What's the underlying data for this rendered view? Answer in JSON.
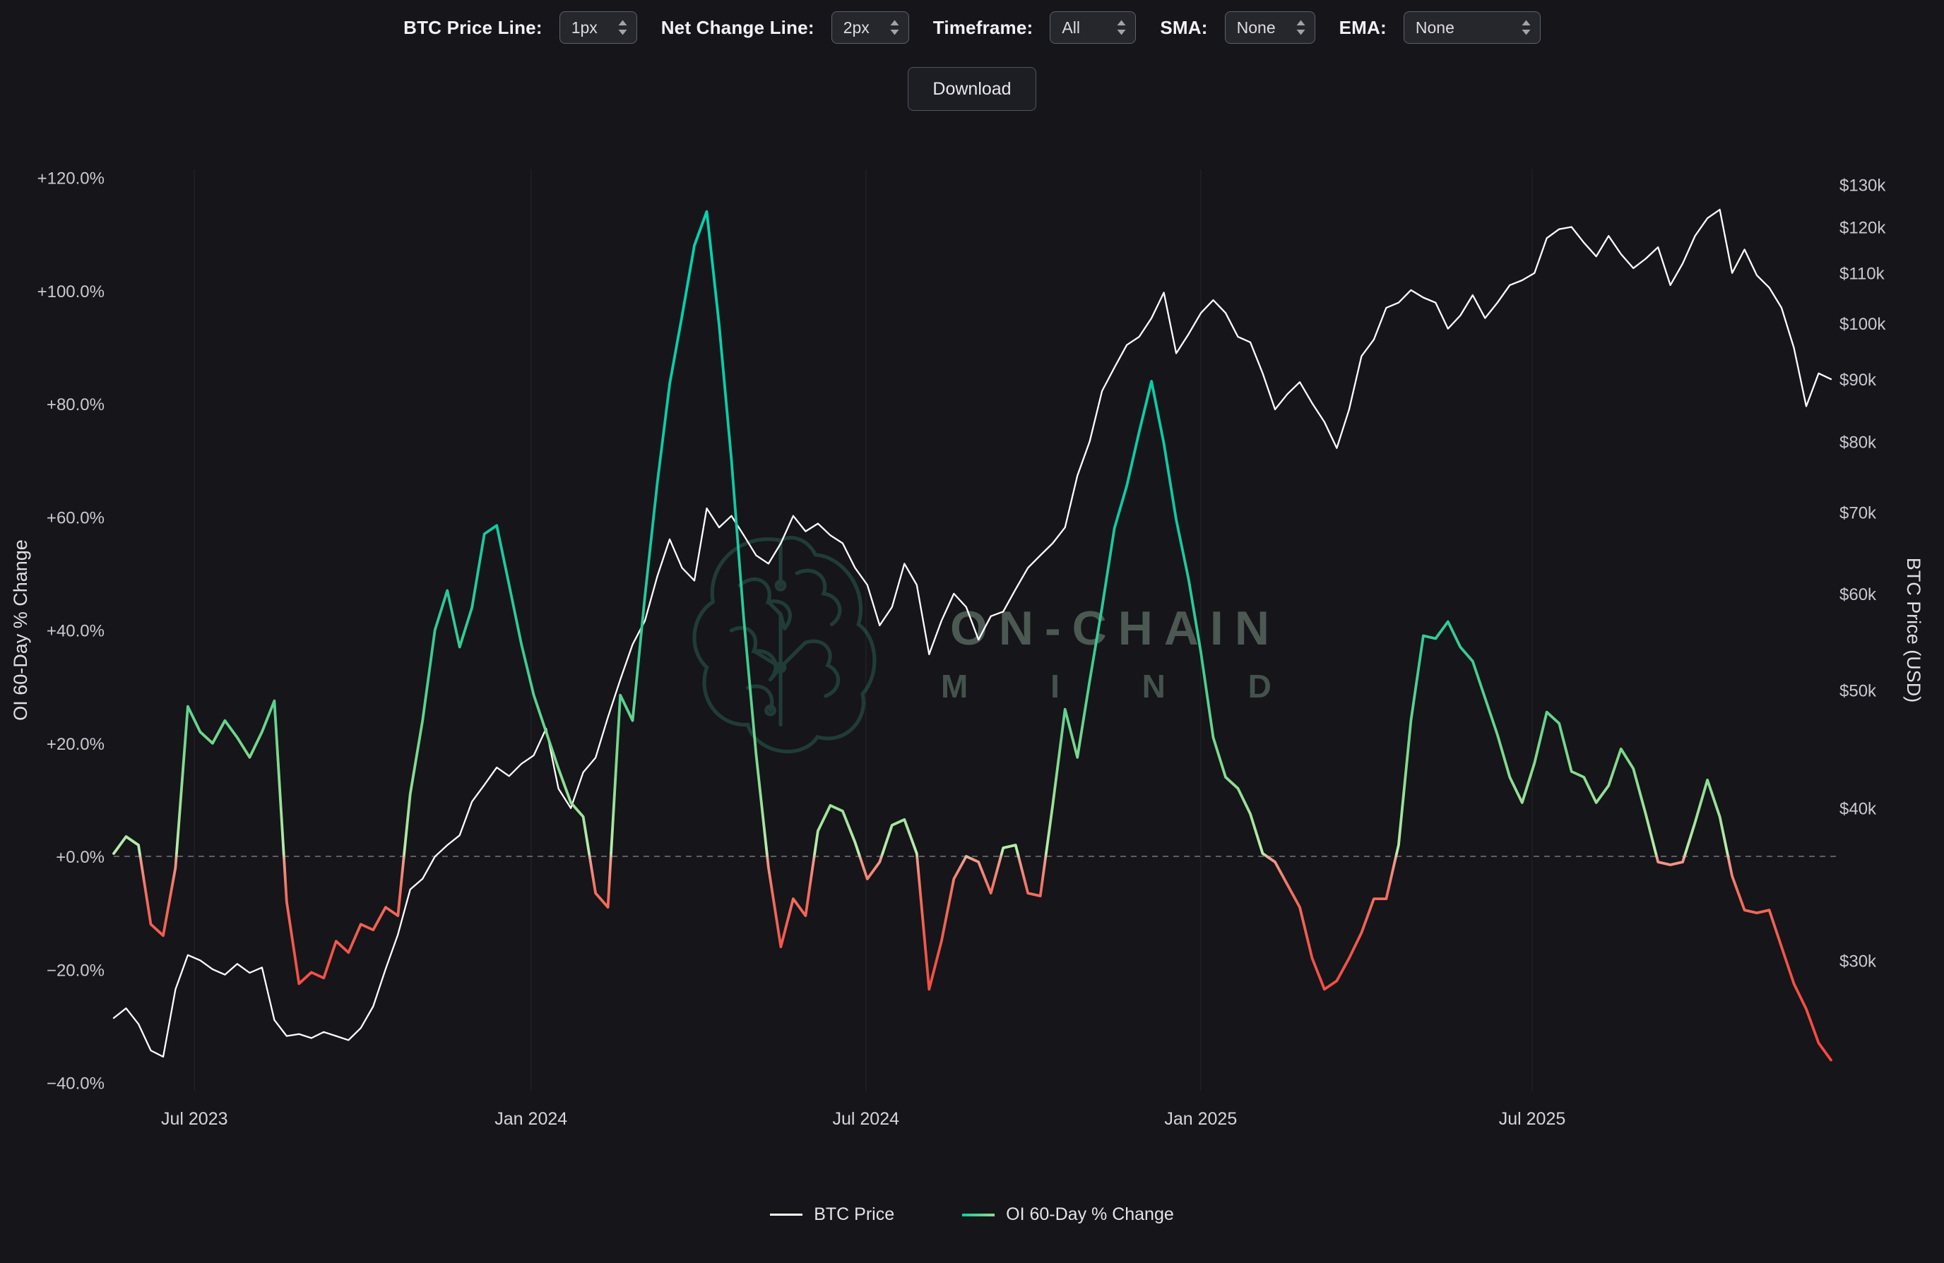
{
  "toolbar": {
    "controls": [
      {
        "label": "BTC Price Line:",
        "value": "1px"
      },
      {
        "label": "Net Change Line:",
        "value": "2px"
      },
      {
        "label": "Timeframe:",
        "value": "All"
      },
      {
        "label": "SMA:",
        "value": "None"
      },
      {
        "label": "EMA:",
        "value": "None"
      }
    ],
    "download_label": "Download"
  },
  "watermark": {
    "line1": "ON-CHAIN",
    "line2": "M I N D"
  },
  "legend": {
    "items": [
      {
        "label": "BTC Price"
      },
      {
        "label": "OI 60-Day % Change"
      }
    ]
  },
  "colors": {
    "background": "#15151a",
    "btc_line": "#ffffff",
    "positive": "#13c9a0",
    "negative": "#f4483a",
    "zero_line": "rgba(235,235,242,0.45)",
    "tick_text": "#c9c9cf",
    "axis_title": "#e0e0e4"
  },
  "chart_data": {
    "type": "line",
    "title": "",
    "grid": "minimal",
    "legend_position": "bottom",
    "zero_line": true,
    "x_axis": {
      "ticks": [
        {
          "pos": 0.047,
          "label": "Jul 2023"
        },
        {
          "pos": 0.243,
          "label": "Jan 2024"
        },
        {
          "pos": 0.438,
          "label": "Jul 2024"
        },
        {
          "pos": 0.633,
          "label": "Jan 2025"
        },
        {
          "pos": 0.826,
          "label": "Jul 2025"
        }
      ]
    },
    "left_axis": {
      "label": "OI 60-Day % Change",
      "min": -40,
      "max": 120,
      "ticks": [
        {
          "v": 120,
          "label": "+120.0%"
        },
        {
          "v": 100,
          "label": "+100.0%"
        },
        {
          "v": 80,
          "label": "+80.0%"
        },
        {
          "v": 60,
          "label": "+60.0%"
        },
        {
          "v": 40,
          "label": "+40.0%"
        },
        {
          "v": 20,
          "label": "+20.0%"
        },
        {
          "v": 0,
          "label": "+0.0%"
        },
        {
          "v": -20,
          "label": "−20.0%"
        },
        {
          "v": -40,
          "label": "−40.0%"
        }
      ]
    },
    "right_axis": {
      "label": "BTC Price (USD)",
      "scale": "log",
      "min_k": 30,
      "max_k": 130,
      "ticks": [
        {
          "v": 130,
          "label": "$130k"
        },
        {
          "v": 120,
          "label": "$120k"
        },
        {
          "v": 110,
          "label": "$110k"
        },
        {
          "v": 100,
          "label": "$100k"
        },
        {
          "v": 90,
          "label": "$90k"
        },
        {
          "v": 80,
          "label": "$80k"
        },
        {
          "v": 70,
          "label": "$70k"
        },
        {
          "v": 60,
          "label": "$60k"
        },
        {
          "v": 50,
          "label": "$50k"
        },
        {
          "v": 40,
          "label": "$40k"
        },
        {
          "v": 30,
          "label": "$30k"
        }
      ]
    },
    "series": [
      {
        "name": "BTC Price",
        "axis": "right",
        "unit": "USD thousands",
        "color": "#ffffff",
        "values": [
          26.9,
          27.4,
          26.6,
          25.3,
          25.0,
          28.4,
          30.3,
          30.0,
          29.5,
          29.2,
          29.8,
          29.3,
          29.6,
          26.8,
          26.0,
          26.1,
          25.9,
          26.2,
          26.0,
          25.8,
          26.4,
          27.5,
          29.5,
          31.5,
          34.3,
          35.0,
          36.5,
          37.3,
          38.0,
          40.5,
          41.8,
          43.2,
          42.5,
          43.5,
          44.2,
          46.5,
          41.5,
          40.0,
          42.8,
          44.0,
          47.5,
          51.0,
          54.5,
          57.0,
          62.0,
          66.5,
          63.0,
          61.5,
          70.5,
          68.0,
          69.5,
          67.0,
          64.5,
          63.5,
          66.0,
          69.5,
          67.5,
          68.5,
          67.0,
          66.0,
          63.0,
          61.0,
          56.5,
          58.5,
          63.5,
          61.0,
          53.5,
          57.0,
          60.0,
          58.5,
          55.0,
          57.5,
          58.0,
          60.5,
          63.0,
          64.5,
          66.0,
          68.0,
          75.0,
          80.0,
          88.0,
          92.0,
          96.0,
          97.5,
          101.0,
          106.0,
          94.5,
          98.0,
          102.0,
          104.5,
          102.0,
          97.5,
          96.5,
          91.0,
          85.0,
          87.5,
          89.5,
          86.0,
          83.0,
          79.0,
          85.0,
          94.0,
          97.0,
          103.0,
          104.0,
          106.5,
          105.0,
          104.0,
          99.0,
          101.5,
          105.5,
          101.0,
          104.0,
          107.5,
          108.5,
          110.0,
          117.5,
          119.5,
          120.0,
          116.5,
          113.5,
          118.0,
          114.0,
          111.0,
          113.0,
          115.5,
          107.5,
          112.0,
          118.0,
          122.0,
          124.0,
          110.0,
          115.0,
          109.5,
          107.0,
          103.0,
          95.5,
          85.5,
          91.0,
          90.0
        ]
      },
      {
        "name": "OI 60-Day % Change",
        "axis": "left",
        "unit": "percent",
        "color_mode": "sign-gradient",
        "values": [
          0.5,
          3.5,
          2.0,
          -12.0,
          -14.0,
          -2.0,
          26.5,
          22.0,
          20.0,
          24.0,
          21.0,
          17.5,
          22.0,
          27.5,
          -8.0,
          -22.5,
          -20.5,
          -21.5,
          -15.0,
          -17.0,
          -12.0,
          -13.0,
          -9.0,
          -10.5,
          11.0,
          24.0,
          40.0,
          47.0,
          37.0,
          44.0,
          57.0,
          58.5,
          48.0,
          37.5,
          28.5,
          22.0,
          15.5,
          9.5,
          7.0,
          -6.5,
          -9.0,
          28.5,
          24.0,
          46.0,
          66.0,
          83.5,
          95.5,
          108.0,
          114.0,
          94.0,
          70.0,
          42.0,
          18.0,
          -2.0,
          -16.0,
          -7.5,
          -10.5,
          4.5,
          9.0,
          8.0,
          2.5,
          -4.0,
          -1.0,
          5.5,
          6.5,
          0.5,
          -23.5,
          -15.0,
          -4.0,
          0.0,
          -1.0,
          -6.5,
          1.5,
          2.0,
          -6.5,
          -7.0,
          9.0,
          26.0,
          17.5,
          31.0,
          44.0,
          58.0,
          65.5,
          75.0,
          84.0,
          73.0,
          59.5,
          49.0,
          36.0,
          21.0,
          14.0,
          12.0,
          7.5,
          0.5,
          -1.0,
          -5.0,
          -9.0,
          -18.0,
          -23.5,
          -22.0,
          -18.0,
          -13.5,
          -7.5,
          -7.5,
          2.0,
          24.0,
          39.0,
          38.5,
          41.5,
          37.0,
          34.5,
          28.0,
          21.5,
          14.0,
          9.5,
          16.5,
          25.5,
          23.5,
          15.0,
          14.0,
          9.5,
          12.5,
          19.0,
          15.5,
          7.5,
          -1.0,
          -1.5,
          -1.0,
          6.0,
          13.5,
          7.0,
          -3.5,
          -9.5,
          -10.0,
          -9.5,
          -16.0,
          -22.5,
          -27.0,
          -33.0,
          -36.0
        ]
      }
    ],
    "oi_gradient": [
      {
        "at": 120,
        "color": "#00d6b0"
      },
      {
        "at": 60,
        "color": "#0fc9a2"
      },
      {
        "at": 35,
        "color": "#3bcb90"
      },
      {
        "at": 18,
        "color": "#7cd98b"
      },
      {
        "at": 6,
        "color": "#a6e49c"
      },
      {
        "at": 0.5,
        "color": "#bcedad"
      },
      {
        "at": -0.5,
        "color": "#f29a8c"
      },
      {
        "at": -6,
        "color": "#f3705e"
      },
      {
        "at": -18,
        "color": "#f25247"
      },
      {
        "at": -40,
        "color": "#ff4438"
      }
    ]
  }
}
